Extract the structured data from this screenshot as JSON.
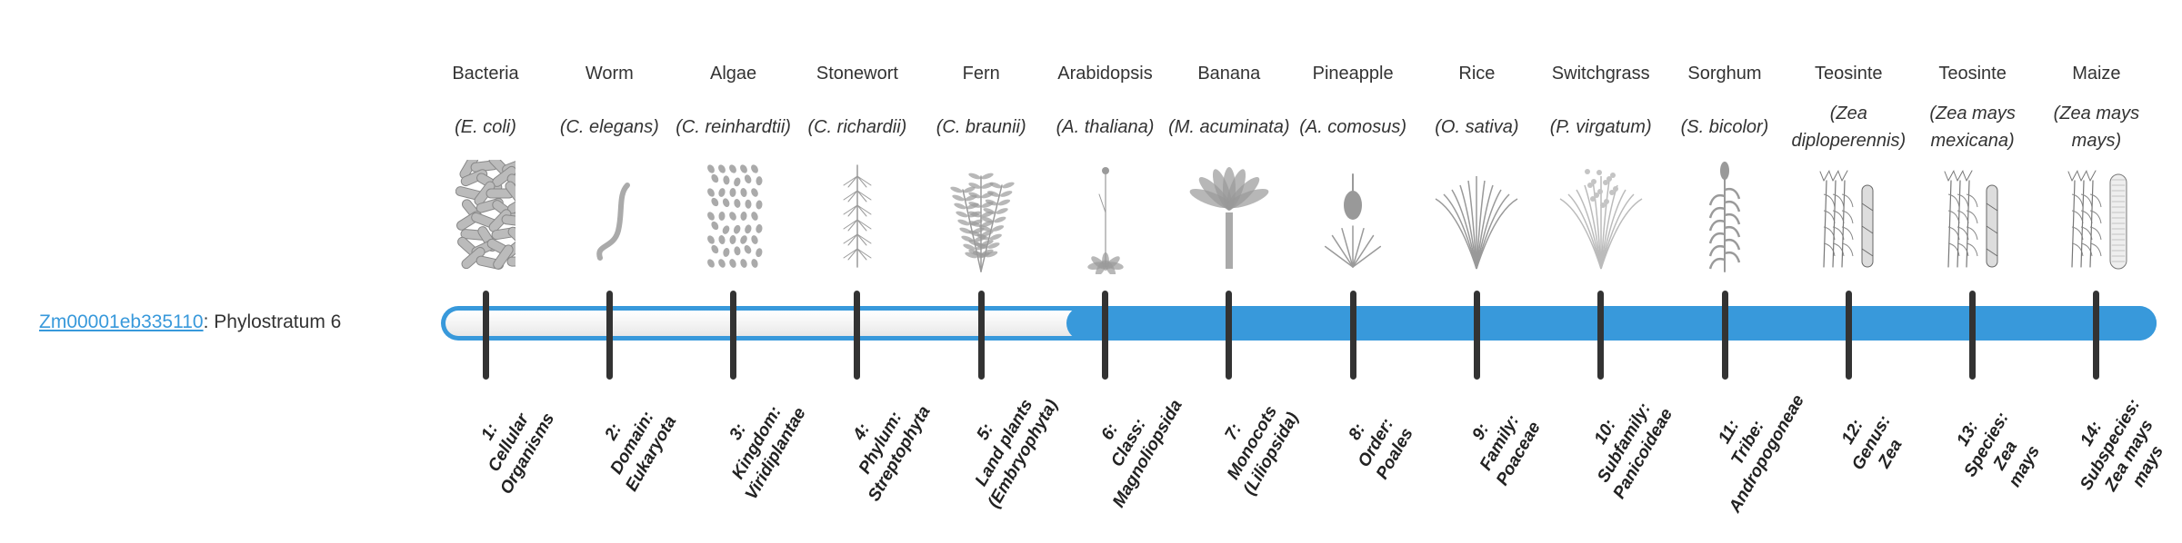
{
  "gene": {
    "id": "Zm00001eb335110",
    "suffix": ": Phylostratum 6",
    "phylostratum": 6
  },
  "colors": {
    "accent": "#3899db",
    "tick": "#333333",
    "empty": "#f5f5f5"
  },
  "organisms": [
    {
      "common": "Bacteria",
      "scientific": "(E. coli)",
      "icon": "bacteria-icon"
    },
    {
      "common": "Worm",
      "scientific": "(C. elegans)",
      "icon": "worm-icon"
    },
    {
      "common": "Algae",
      "scientific": "(C. reinhardtii)",
      "icon": "algae-icon"
    },
    {
      "common": "Stonewort",
      "scientific": "(C. richardii)",
      "icon": "stonewort-icon"
    },
    {
      "common": "Fern",
      "scientific": "(C. braunii)",
      "icon": "fern-icon"
    },
    {
      "common": "Arabidopsis",
      "scientific": "(A. thaliana)",
      "icon": "arabidopsis-icon"
    },
    {
      "common": "Banana",
      "scientific": "(M. acuminata)",
      "icon": "banana-icon"
    },
    {
      "common": "Pineapple",
      "scientific": "(A. comosus)",
      "icon": "pineapple-icon"
    },
    {
      "common": "Rice",
      "scientific": "(O. sativa)",
      "icon": "rice-icon"
    },
    {
      "common": "Switchgrass",
      "scientific": "(P. virgatum)",
      "icon": "switchgrass-icon"
    },
    {
      "common": "Sorghum",
      "scientific": "(S. bicolor)",
      "icon": "sorghum-icon"
    },
    {
      "common": "Teosinte",
      "scientific": "(Zea diploperennis)",
      "icon": "teosinte-icon"
    },
    {
      "common": "Teosinte",
      "scientific": "(Zea mays mexicana)",
      "icon": "teosinte-icon"
    },
    {
      "common": "Maize",
      "scientific": "(Zea mays mays)",
      "icon": "maize-icon"
    }
  ],
  "strata": [
    {
      "lines": [
        "1:",
        "Cellular",
        "Organisms"
      ]
    },
    {
      "lines": [
        "2:",
        "Domain:",
        "Eukaryota"
      ]
    },
    {
      "lines": [
        "3:",
        "Kingdom:",
        "Viridiplantae"
      ]
    },
    {
      "lines": [
        "4:",
        "Phylum:",
        "Streptophyta"
      ]
    },
    {
      "lines": [
        "5:",
        "Land plants",
        "(Embryophyta)"
      ]
    },
    {
      "lines": [
        "6:",
        "Class:",
        "Magnoliopsida"
      ]
    },
    {
      "lines": [
        "7:",
        "Monocots",
        "(Liliopsida)"
      ]
    },
    {
      "lines": [
        "8:",
        "Order:",
        "Poales"
      ]
    },
    {
      "lines": [
        "9:",
        "Family:",
        "Poaceae"
      ]
    },
    {
      "lines": [
        "10:",
        "Subfamily:",
        "Panicoideae"
      ]
    },
    {
      "lines": [
        "11:",
        "Tribe:",
        "Andropogoneae"
      ]
    },
    {
      "lines": [
        "12:",
        "Genus:",
        "Zea"
      ]
    },
    {
      "lines": [
        "13:",
        "Species:",
        "Zea",
        "mays"
      ]
    },
    {
      "lines": [
        "14:",
        "Subspecies:",
        "Zea mays",
        "mays"
      ]
    }
  ]
}
